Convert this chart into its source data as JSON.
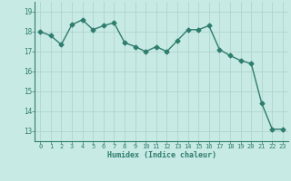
{
  "xlabel": "Humidex (Indice chaleur)",
  "x": [
    0,
    1,
    2,
    3,
    4,
    5,
    6,
    7,
    8,
    9,
    10,
    11,
    12,
    13,
    14,
    15,
    16,
    17,
    18,
    19,
    20,
    21,
    22,
    23
  ],
  "y": [
    18.0,
    17.8,
    17.35,
    18.35,
    18.6,
    18.1,
    18.3,
    18.45,
    17.45,
    17.25,
    17.0,
    17.25,
    17.0,
    17.55,
    18.1,
    18.1,
    18.3,
    17.1,
    16.8,
    16.55,
    16.4,
    14.4,
    13.1,
    13.1
  ],
  "line_color": "#2e7d6e",
  "bg_color": "#c8eae4",
  "grid_color": "#b0d4ce",
  "label_color": "#2e7d6e",
  "ylim": [
    12.5,
    19.5
  ],
  "xlim": [
    -0.5,
    23.5
  ],
  "yticks": [
    13,
    14,
    15,
    16,
    17,
    18,
    19
  ],
  "xticks": [
    0,
    1,
    2,
    3,
    4,
    5,
    6,
    7,
    8,
    9,
    10,
    11,
    12,
    13,
    14,
    15,
    16,
    17,
    18,
    19,
    20,
    21,
    22,
    23
  ],
  "xtick_labels": [
    "0",
    "1",
    "2",
    "3",
    "4",
    "5",
    "6",
    "7",
    "8",
    "9",
    "10",
    "11",
    "12",
    "13",
    "14",
    "15",
    "16",
    "17",
    "18",
    "19",
    "20",
    "21",
    "22",
    "23"
  ],
  "marker": "D",
  "markersize": 2.5,
  "linewidth": 1.0
}
